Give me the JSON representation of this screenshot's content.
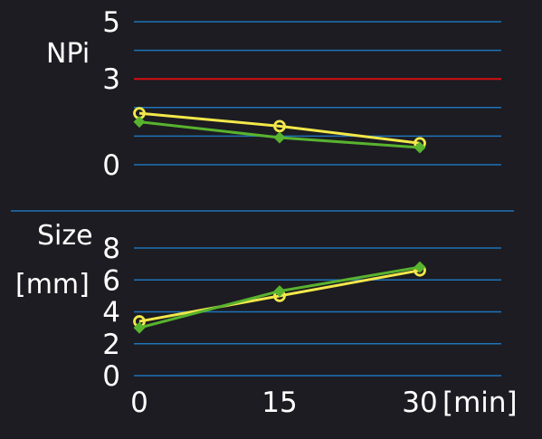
{
  "colors": {
    "background": "#1c1c22",
    "gridline": "#1f73b8",
    "threshold": "#d01010",
    "text": "#ffffff",
    "series_yellow": "#f2e84a",
    "series_green": "#58b32e"
  },
  "chart_data": [
    {
      "type": "line",
      "ylabel": "NPi",
      "ylim": [
        0,
        5
      ],
      "yticks": [
        0,
        3,
        5
      ],
      "gridlines": [
        0,
        1,
        2,
        3,
        4,
        5
      ],
      "threshold": 3,
      "x": [
        0,
        15,
        30
      ],
      "series": [
        {
          "marker": "circle",
          "color": "#f2e84a",
          "values": [
            1.8,
            1.35,
            0.75
          ]
        },
        {
          "marker": "diamond",
          "color": "#58b32e",
          "values": [
            1.5,
            0.95,
            0.6
          ]
        }
      ]
    },
    {
      "type": "line",
      "ylabel": [
        "Size",
        "[mm]"
      ],
      "ylim": [
        0,
        8
      ],
      "yticks": [
        0,
        2,
        4,
        6,
        8
      ],
      "gridlines": [
        0,
        2,
        4,
        6,
        8
      ],
      "x": [
        0,
        15,
        30
      ],
      "xticks": [
        "0",
        "15",
        "30"
      ],
      "xunit": "[min]",
      "series": [
        {
          "marker": "circle",
          "color": "#f2e84a",
          "values": [
            3.4,
            5.0,
            6.6
          ]
        },
        {
          "marker": "diamond",
          "color": "#58b32e",
          "values": [
            3.0,
            5.3,
            6.8
          ]
        }
      ]
    }
  ]
}
